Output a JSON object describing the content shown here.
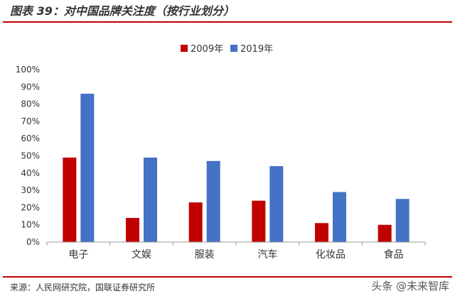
{
  "figure": {
    "title": "图表 39：对中国品牌关注度（按行业划分）",
    "source": "来源：人民网研究院，国联证券研究所",
    "watermark": "头条 @未来智库"
  },
  "colors": {
    "series_2009": "#c00000",
    "series_2019": "#4472c4",
    "rule": "#c00000"
  },
  "chart_data": {
    "type": "bar",
    "title": "",
    "xlabel": "",
    "ylabel": "",
    "categories": [
      "电子",
      "文娱",
      "服装",
      "汽车",
      "化妆品",
      "食品"
    ],
    "series": [
      {
        "name": "2009年",
        "values": [
          49,
          14,
          23,
          24,
          11,
          10
        ]
      },
      {
        "name": "2019年",
        "values": [
          86,
          49,
          47,
          44,
          29,
          25
        ]
      }
    ],
    "ylim": [
      0,
      100
    ],
    "yticks": [
      "0%",
      "10%",
      "20%",
      "30%",
      "40%",
      "50%",
      "60%",
      "70%",
      "80%",
      "90%",
      "100%"
    ],
    "grid": false,
    "legend_position": "top-center"
  }
}
